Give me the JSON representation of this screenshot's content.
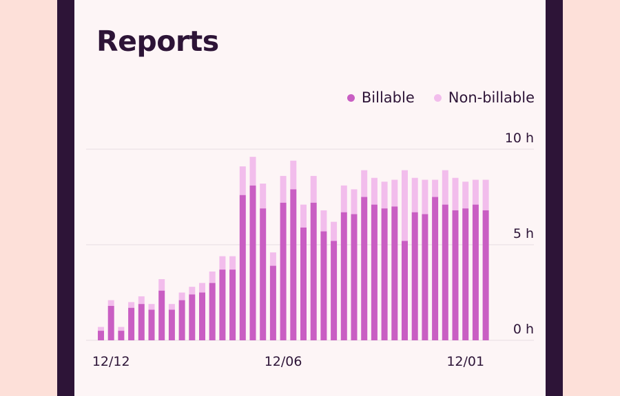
{
  "colors": {
    "billable": "#c95ec3",
    "non_billable": "#f2bdec",
    "grid": "#e6dde1",
    "text": "#2d1437"
  },
  "header": {
    "title": "Reports"
  },
  "legend": {
    "billable": "Billable",
    "non_billable": "Non-billable"
  },
  "chart_data": {
    "type": "bar",
    "stacked": true,
    "ylim": [
      0,
      10
    ],
    "y_ticks": [
      {
        "value": 10,
        "label": "10 h"
      },
      {
        "value": 5,
        "label": "5 h"
      },
      {
        "value": 0,
        "label": "0 h"
      }
    ],
    "x_tick_labels": [
      {
        "index": 1,
        "label": "12/12"
      },
      {
        "index": 18,
        "label": "12/06"
      },
      {
        "index": 36,
        "label": "12/01"
      }
    ],
    "grid": true,
    "legend_position": "top-right",
    "series": [
      {
        "name": "Billable",
        "values": [
          0.5,
          1.8,
          0.5,
          1.7,
          1.9,
          1.6,
          2.6,
          1.6,
          2.1,
          2.4,
          2.5,
          3.0,
          3.7,
          3.7,
          7.6,
          8.1,
          6.9,
          3.9,
          7.2,
          7.9,
          5.9,
          7.2,
          5.7,
          5.2,
          6.7,
          6.6,
          7.5,
          7.1,
          6.9,
          7.0,
          5.2,
          6.7,
          6.6,
          7.5,
          7.1,
          6.8,
          6.9,
          7.1,
          6.8
        ]
      },
      {
        "name": "Non-billable",
        "values": [
          0.2,
          0.3,
          0.2,
          0.3,
          0.4,
          0.3,
          0.6,
          0.3,
          0.4,
          0.4,
          0.5,
          0.6,
          0.7,
          0.7,
          1.5,
          1.5,
          1.3,
          0.7,
          1.4,
          1.5,
          1.2,
          1.4,
          1.1,
          1.0,
          1.4,
          1.3,
          1.4,
          1.4,
          1.4,
          1.4,
          3.7,
          1.8,
          1.8,
          0.9,
          1.8,
          1.7,
          1.4,
          1.3,
          1.6
        ]
      }
    ]
  }
}
